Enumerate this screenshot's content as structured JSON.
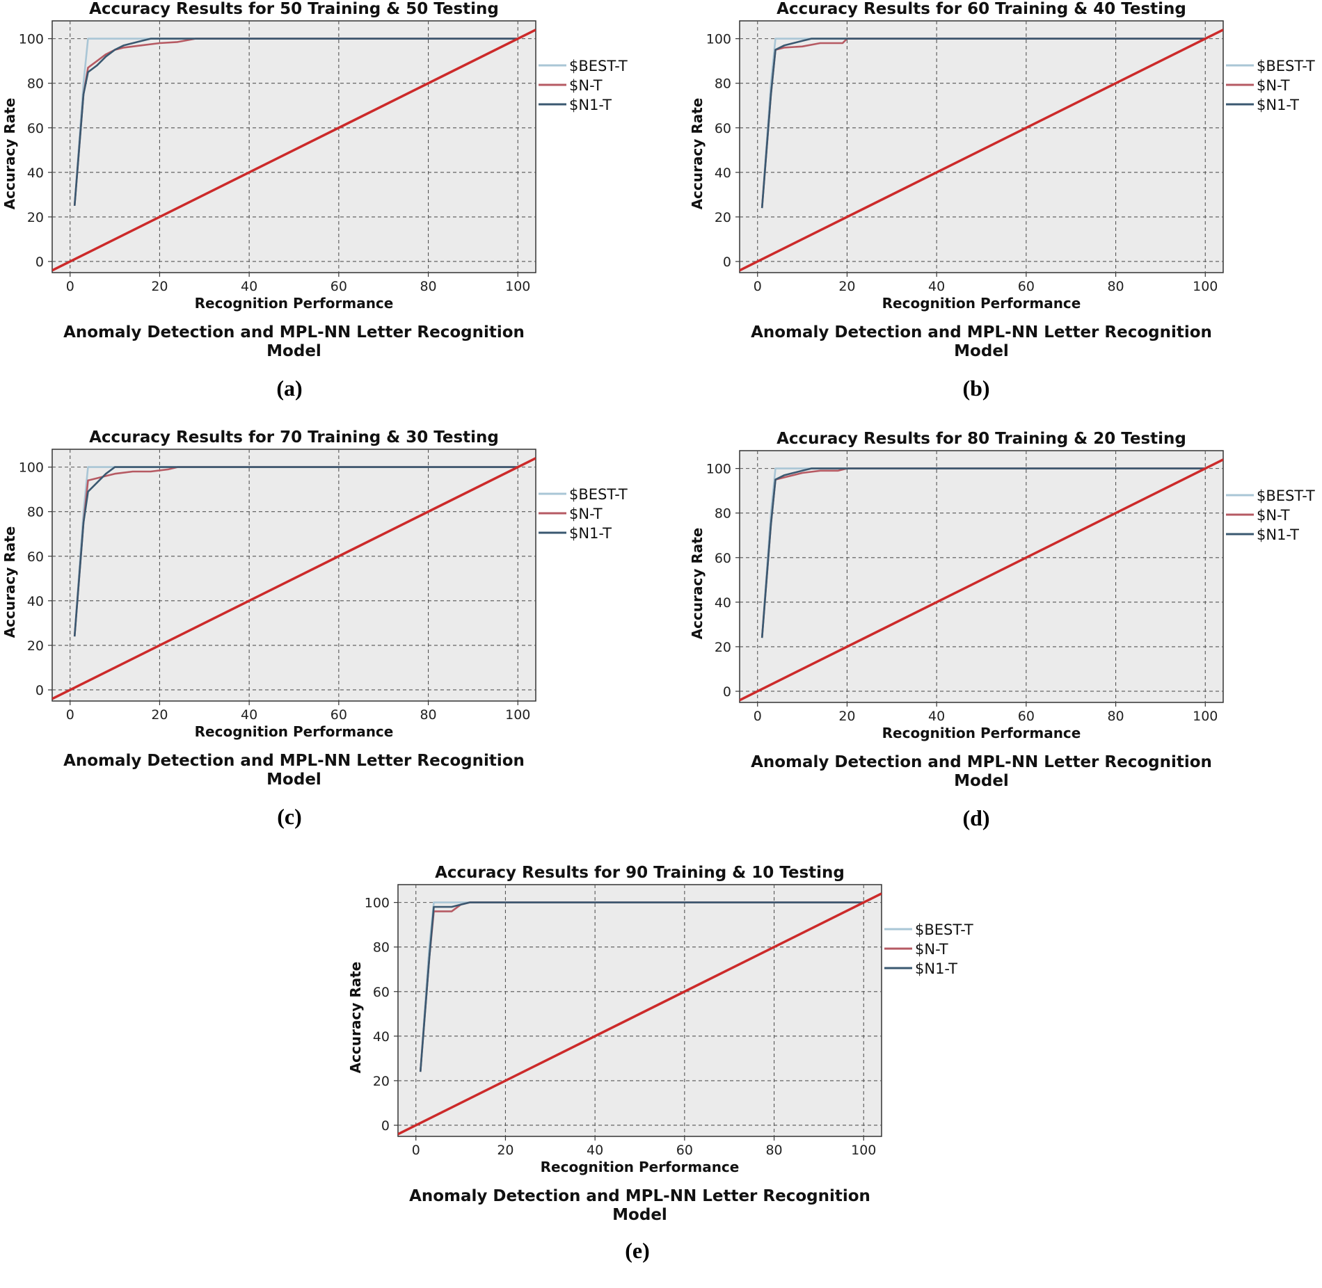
{
  "chart_data": [
    {
      "type": "line",
      "label": "(a)",
      "title": "Accuracy Results for 50 Training & 50 Testing",
      "xlabel": "Recognition Performance",
      "ylabel": "Accuracy Rate",
      "caption": [
        "Anomaly Detection and MPL-NN Letter Recognition",
        "Model"
      ],
      "xlim": [
        -4,
        104
      ],
      "ylim": [
        -5,
        108
      ],
      "xticks": [
        "0",
        "20",
        "40",
        "60",
        "80",
        "100"
      ],
      "yticks": [
        "0",
        "20",
        "40",
        "60",
        "80",
        "100"
      ],
      "grid": true,
      "legend": [
        "$BEST-T",
        "$N-T",
        "$N1-T"
      ],
      "series": [
        {
          "name": "$BEST-T",
          "color": "#a9c6d6",
          "x": [
            1,
            3,
            4,
            30,
            100
          ],
          "y": [
            25,
            80,
            100,
            100,
            100
          ]
        },
        {
          "name": "$N-T",
          "color": "#b65a63",
          "x": [
            1,
            3,
            4,
            6,
            8,
            10,
            12,
            16,
            20,
            24,
            28,
            100
          ],
          "y": [
            25,
            75,
            87,
            90,
            93,
            95,
            96,
            97,
            98,
            98.5,
            100,
            100
          ]
        },
        {
          "name": "$N1-T",
          "color": "#3a5870",
          "x": [
            1,
            3,
            4,
            6,
            8,
            10,
            12,
            14,
            16,
            18,
            100
          ],
          "y": [
            25,
            75,
            85,
            88,
            92,
            95,
            97,
            98,
            99,
            100,
            100
          ]
        },
        {
          "name": "reference",
          "color": "#cc2a2a",
          "x": [
            -4,
            104
          ],
          "y": [
            -4,
            104
          ]
        }
      ]
    },
    {
      "type": "line",
      "label": "(b)",
      "title": "Accuracy Results for 60 Training & 40 Testing",
      "xlabel": "Recognition Performance",
      "ylabel": "Accuracy Rate",
      "caption": [
        "Anomaly Detection and MPL-NN Letter Recognition",
        "Model"
      ],
      "xlim": [
        -4,
        104
      ],
      "ylim": [
        -5,
        108
      ],
      "xticks": [
        "0",
        "20",
        "40",
        "60",
        "80",
        "100"
      ],
      "yticks": [
        "0",
        "20",
        "40",
        "60",
        "80",
        "100"
      ],
      "grid": true,
      "legend": [
        "$BEST-T",
        "$N-T",
        "$N1-T"
      ],
      "series": [
        {
          "name": "$BEST-T",
          "color": "#a9c6d6",
          "x": [
            1,
            3,
            4,
            100
          ],
          "y": [
            24,
            80,
            100,
            100
          ]
        },
        {
          "name": "$N-T",
          "color": "#b65a63",
          "x": [
            1,
            3,
            4,
            6,
            10,
            14,
            19,
            20,
            100
          ],
          "y": [
            24,
            75,
            95,
            96,
            96.5,
            98,
            98,
            100,
            100
          ]
        },
        {
          "name": "$N1-T",
          "color": "#3a5870",
          "x": [
            1,
            3,
            4,
            6,
            8,
            10,
            12,
            100
          ],
          "y": [
            24,
            75,
            95,
            97,
            98,
            99,
            100,
            100
          ]
        },
        {
          "name": "reference",
          "color": "#cc2a2a",
          "x": [
            -4,
            104
          ],
          "y": [
            -4,
            104
          ]
        }
      ]
    },
    {
      "type": "line",
      "label": "(c)",
      "title": "Accuracy Results for 70 Training & 30 Testing",
      "xlabel": "Recognition Performance",
      "ylabel": "Accuracy Rate",
      "caption": [
        "Anomaly Detection and MPL-NN Letter Recognition",
        "Model"
      ],
      "xlim": [
        -4,
        104
      ],
      "ylim": [
        -5,
        108
      ],
      "xticks": [
        "0",
        "20",
        "40",
        "60",
        "80",
        "100"
      ],
      "yticks": [
        "0",
        "20",
        "40",
        "60",
        "80",
        "100"
      ],
      "grid": true,
      "legend": [
        "$BEST-T",
        "$N-T",
        "$N1-T"
      ],
      "series": [
        {
          "name": "$BEST-T",
          "color": "#a9c6d6",
          "x": [
            1,
            3,
            4,
            100
          ],
          "y": [
            24,
            80,
            100,
            100
          ]
        },
        {
          "name": "$N-T",
          "color": "#b65a63",
          "x": [
            1,
            3,
            4,
            6,
            8,
            10,
            14,
            18,
            22,
            24,
            100
          ],
          "y": [
            24,
            75,
            94,
            95,
            96,
            97,
            98,
            98,
            99,
            100,
            100
          ]
        },
        {
          "name": "$N1-T",
          "color": "#3a5870",
          "x": [
            1,
            3,
            4,
            6,
            8,
            10,
            100
          ],
          "y": [
            24,
            75,
            89,
            93,
            97,
            100,
            100
          ]
        },
        {
          "name": "reference",
          "color": "#cc2a2a",
          "x": [
            -4,
            104
          ],
          "y": [
            -4,
            104
          ]
        }
      ]
    },
    {
      "type": "line",
      "label": "(d)",
      "title": "Accuracy Results for 80 Training & 20 Testing",
      "xlabel": "Recognition Performance",
      "ylabel": "Accuracy Rate",
      "caption": [
        "Anomaly Detection and MPL-NN Letter Recognition",
        "Model"
      ],
      "xlim": [
        -4,
        104
      ],
      "ylim": [
        -5,
        108
      ],
      "xticks": [
        "0",
        "20",
        "40",
        "60",
        "80",
        "100"
      ],
      "yticks": [
        "0",
        "20",
        "40",
        "60",
        "80",
        "100"
      ],
      "grid": true,
      "legend": [
        "$BEST-T",
        "$N-T",
        "$N1-T"
      ],
      "series": [
        {
          "name": "$BEST-T",
          "color": "#a9c6d6",
          "x": [
            1,
            3,
            4,
            100
          ],
          "y": [
            24,
            80,
            100,
            100
          ]
        },
        {
          "name": "$N-T",
          "color": "#b65a63",
          "x": [
            1,
            3,
            4,
            6,
            10,
            14,
            18,
            20,
            100
          ],
          "y": [
            24,
            75,
            95,
            96,
            98,
            99,
            99,
            100,
            100
          ]
        },
        {
          "name": "$N1-T",
          "color": "#3a5870",
          "x": [
            1,
            3,
            4,
            6,
            8,
            10,
            12,
            100
          ],
          "y": [
            24,
            75,
            95,
            97,
            98,
            99,
            100,
            100
          ]
        },
        {
          "name": "reference",
          "color": "#cc2a2a",
          "x": [
            -4,
            104
          ],
          "y": [
            -4,
            104
          ]
        }
      ]
    },
    {
      "type": "line",
      "label": "(e)",
      "title": "Accuracy Results for 90 Training & 10 Testing",
      "xlabel": "Recognition Performance",
      "ylabel": "Accuracy Rate",
      "caption": [
        "Anomaly Detection and MPL-NN Letter Recognition",
        "Model"
      ],
      "xlim": [
        -4,
        104
      ],
      "ylim": [
        -5,
        108
      ],
      "xticks": [
        "0",
        "20",
        "40",
        "60",
        "80",
        "100"
      ],
      "yticks": [
        "0",
        "20",
        "40",
        "60",
        "80",
        "100"
      ],
      "grid": true,
      "legend": [
        "$BEST-T",
        "$N-T",
        "$N1-T"
      ],
      "series": [
        {
          "name": "$BEST-T",
          "color": "#a9c6d6",
          "x": [
            1,
            3,
            4,
            100
          ],
          "y": [
            24,
            80,
            100,
            100
          ]
        },
        {
          "name": "$N-T",
          "color": "#b65a63",
          "x": [
            1,
            3,
            4,
            8,
            10,
            12,
            100
          ],
          "y": [
            24,
            75,
            96,
            96,
            99,
            100,
            100
          ]
        },
        {
          "name": "$N1-T",
          "color": "#3a5870",
          "x": [
            1,
            3,
            4,
            8,
            10,
            12,
            100
          ],
          "y": [
            24,
            75,
            98,
            98,
            99,
            100,
            100
          ]
        },
        {
          "name": "reference",
          "color": "#cc2a2a",
          "x": [
            -4,
            104
          ],
          "y": [
            -4,
            104
          ]
        }
      ]
    }
  ]
}
